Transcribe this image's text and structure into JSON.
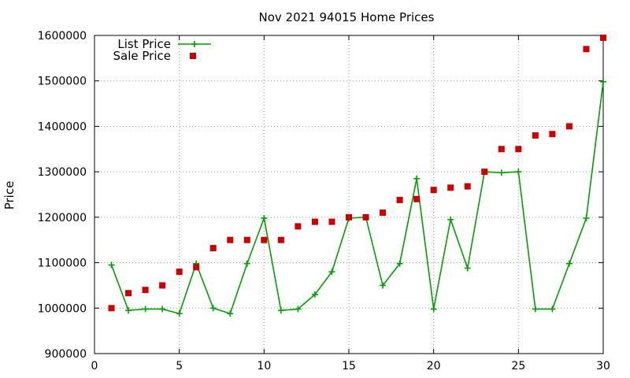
{
  "chart_data": {
    "type": "line",
    "title": "Nov 2021 94015 Home Prices",
    "xlabel": "",
    "ylabel": "Price",
    "xlim": [
      0,
      30
    ],
    "ylim": [
      900000,
      1600000
    ],
    "xticks": [
      0,
      5,
      10,
      15,
      20,
      25,
      30
    ],
    "yticks": [
      900000,
      1000000,
      1100000,
      1200000,
      1300000,
      1400000,
      1500000,
      1600000
    ],
    "x_tick_labels": [
      "0",
      "5",
      "10",
      "15",
      "20",
      "25",
      "30"
    ],
    "y_tick_labels": [
      "900000",
      "1000000",
      "1100000",
      "1200000",
      "1300000",
      "1400000",
      "1500000",
      "1600000"
    ],
    "grid": true,
    "legend_position": "top-left",
    "x": [
      1,
      2,
      3,
      4,
      5,
      6,
      7,
      8,
      9,
      10,
      11,
      12,
      13,
      14,
      15,
      16,
      17,
      18,
      19,
      20,
      21,
      22,
      23,
      24,
      25,
      26,
      27,
      28,
      29,
      30
    ],
    "series": [
      {
        "name": "List Price",
        "style": "line+cross",
        "color": "#00a000",
        "values": [
          1095000,
          995000,
          998000,
          998000,
          988000,
          1098000,
          1000000,
          988000,
          1098000,
          1198000,
          995000,
          998000,
          1030000,
          1080000,
          1198000,
          1200000,
          1050000,
          1098000,
          1285000,
          998000,
          1195000,
          1088000,
          1300000,
          1298000,
          1300000,
          998000,
          998000,
          1098000,
          1198000,
          1498000
        ]
      },
      {
        "name": "Sale Price",
        "style": "square",
        "color": "#cc0000",
        "values": [
          1000000,
          1033000,
          1040000,
          1050000,
          1080000,
          1090000,
          1132000,
          1150000,
          1150000,
          1150000,
          1150000,
          1180000,
          1190000,
          1190000,
          1200000,
          1200000,
          1210000,
          1238000,
          1240000,
          1260000,
          1265000,
          1268000,
          1300000,
          1350000,
          1350000,
          1380000,
          1383000,
          1400000,
          1570000,
          1595000
        ]
      }
    ]
  }
}
